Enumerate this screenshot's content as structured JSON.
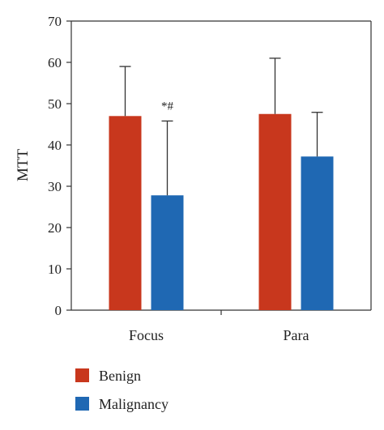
{
  "chart_data": {
    "type": "bar",
    "categories": [
      "Focus",
      "Para"
    ],
    "series": [
      {
        "name": "Benign",
        "values": [
          47,
          47.5
        ],
        "error": [
          12,
          13.5
        ],
        "color": "#c8371d"
      },
      {
        "name": "Malignancy",
        "values": [
          27.8,
          37.2
        ],
        "error": [
          18,
          10.7
        ],
        "color": "#1f68b3"
      }
    ],
    "title": "",
    "xlabel": "",
    "ylabel": "MTT",
    "ylim": [
      0,
      70
    ],
    "yticks": [
      0,
      10,
      20,
      30,
      40,
      50,
      60,
      70
    ],
    "grid": false,
    "legend_position": "bottom-left",
    "annotations": [
      {
        "text": "*#",
        "category": "Focus",
        "series": "Malignancy"
      }
    ]
  }
}
